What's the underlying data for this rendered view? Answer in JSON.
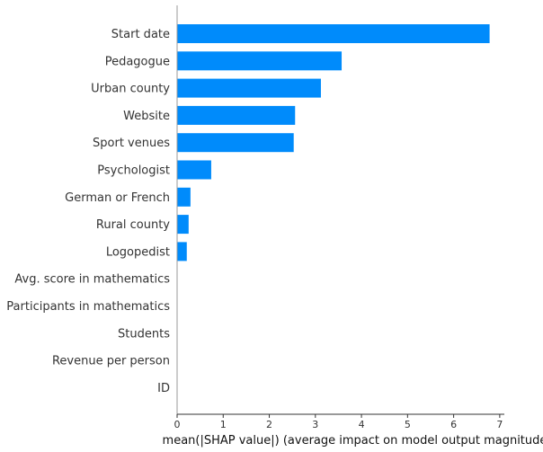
{
  "chart_data": {
    "type": "bar",
    "orientation": "horizontal",
    "xlabel": "mean(|SHAP value|) (average impact on model output magnitude)",
    "ylabel": "",
    "title": "",
    "xlim": [
      0,
      7.1
    ],
    "xticks": [
      "0",
      "1",
      "2",
      "3",
      "4",
      "5",
      "6",
      "7"
    ],
    "categories": [
      "Start date",
      "Pedagogue",
      "Urban county",
      "Website",
      "Sport venues",
      "Psychologist",
      "German or French",
      "Rural county",
      "Logopedist",
      "Avg. score in mathematics",
      "Participants in mathematics",
      "Students",
      "Revenue per person",
      "ID"
    ],
    "values": [
      6.78,
      3.57,
      3.12,
      2.56,
      2.53,
      0.74,
      0.29,
      0.25,
      0.21,
      0,
      0,
      0,
      0,
      0
    ],
    "grid": false,
    "legend": "none",
    "bar_color": "#008bfb",
    "axis_color": "#333333"
  }
}
